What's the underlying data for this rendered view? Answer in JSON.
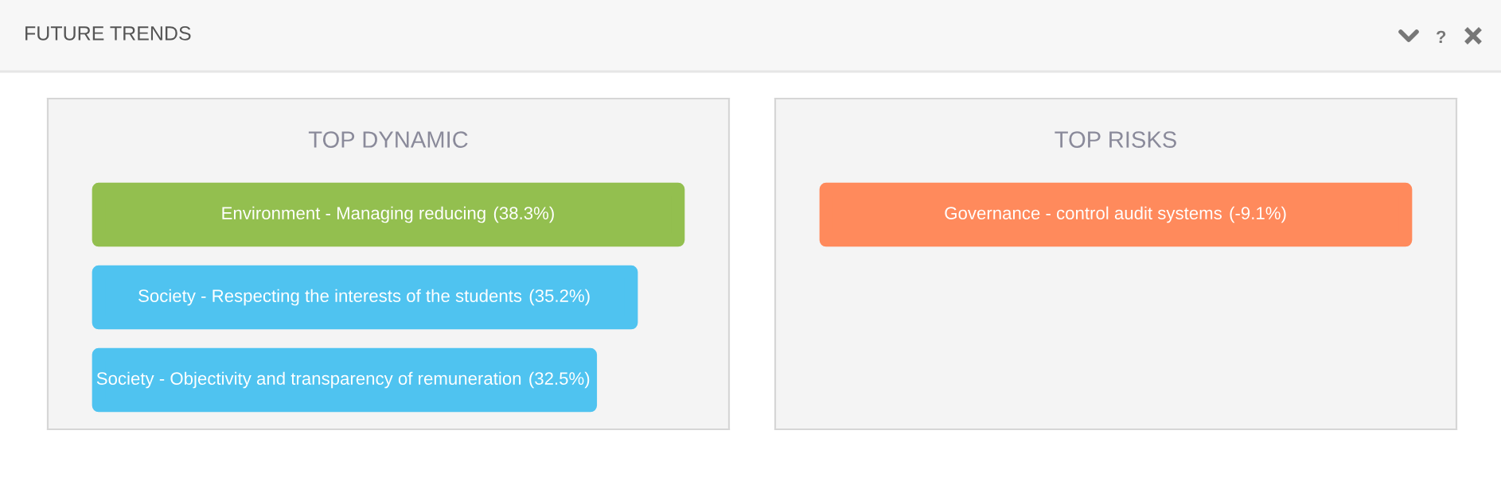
{
  "chart_data": [
    {
      "type": "other",
      "title": "FUTURE TRENDS"
    },
    {
      "type": "bar",
      "orientation": "horizontal",
      "title": "TOP DYNAMIC",
      "categories": [
        "Environment - Managing reducing",
        "Society - Respecting the interests of the students",
        "Society - Objectivity and transparency of remuneration"
      ],
      "values": [
        38.3,
        35.2,
        32.5
      ],
      "value_labels": [
        "(38.3%)",
        "(35.2%)",
        "(32.5%)"
      ],
      "colors": [
        "#93bf4f",
        "#4fc3f0",
        "#4fc3f0"
      ]
    },
    {
      "type": "bar",
      "orientation": "horizontal",
      "title": "TOP RISKS",
      "categories": [
        "Governance - control audit systems"
      ],
      "values": [
        -9.1
      ],
      "value_labels": [
        "(-9.1%)"
      ],
      "colors": [
        "#ff8a5c"
      ]
    }
  ]
}
